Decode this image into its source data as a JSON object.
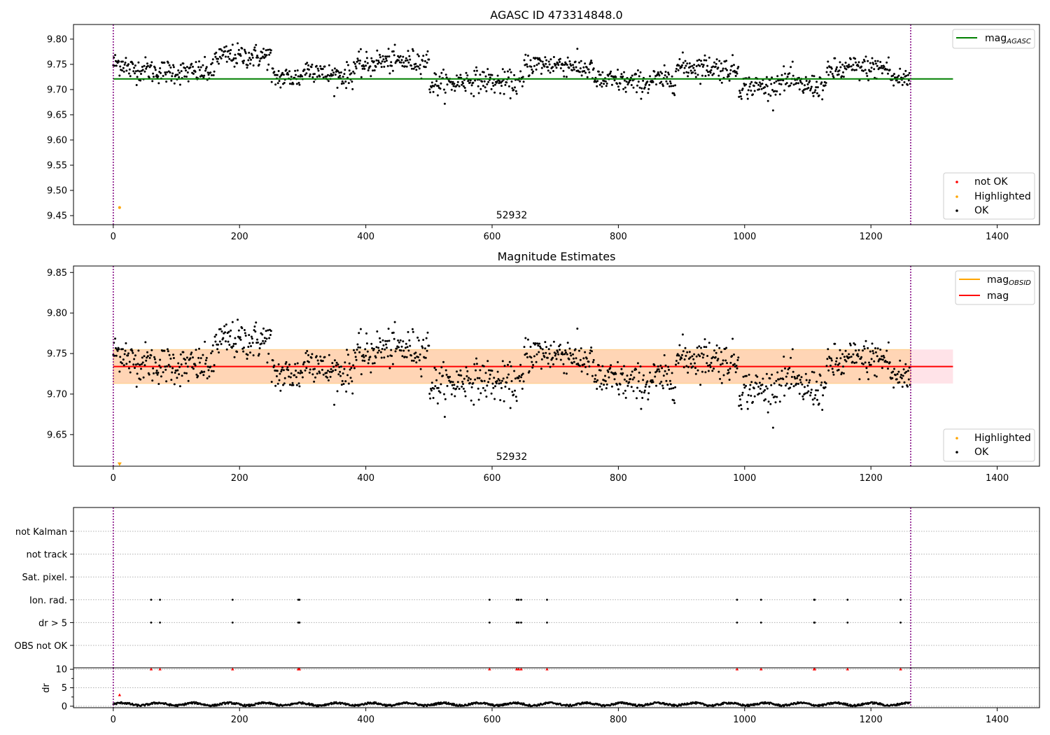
{
  "chart_data": [
    {
      "type": "scatter",
      "title": "AGASC ID 473314848.0",
      "xlim": [
        -63,
        1467
      ],
      "ylim": [
        9.432,
        9.829
      ],
      "x_ticks": [
        "0",
        "200",
        "400",
        "600",
        "800",
        "1000",
        "1200",
        "1400"
      ],
      "y_ticks": [
        "9.45",
        "9.50",
        "9.55",
        "9.60",
        "9.65",
        "9.70",
        "9.75",
        "9.80"
      ],
      "obsid_label": "52932",
      "obs_window": [
        0,
        1263
      ],
      "reference_line": {
        "name": "mag_AGASC",
        "y": 9.721,
        "x_range": [
          0,
          1330
        ],
        "color": "#008000"
      },
      "highlighted_points": [
        {
          "x": 10,
          "y": 9.466
        }
      ],
      "ok_series": {
        "name": "OK",
        "n": 1263,
        "x_range": [
          0,
          1263
        ],
        "segments": [
          {
            "x_end": 20,
            "mean": 9.752
          },
          {
            "x_end": 60,
            "mean": 9.74
          },
          {
            "x_end": 100,
            "mean": 9.736
          },
          {
            "x_end": 130,
            "mean": 9.734
          },
          {
            "x_end": 160,
            "mean": 9.735
          },
          {
            "x_end": 250,
            "mean": 9.766
          },
          {
            "x_end": 300,
            "mean": 9.724
          },
          {
            "x_end": 330,
            "mean": 9.741
          },
          {
            "x_end": 380,
            "mean": 9.728
          },
          {
            "x_end": 410,
            "mean": 9.748
          },
          {
            "x_end": 500,
            "mean": 9.756
          },
          {
            "x_end": 545,
            "mean": 9.712
          },
          {
            "x_end": 600,
            "mean": 9.718
          },
          {
            "x_end": 650,
            "mean": 9.713
          },
          {
            "x_end": 730,
            "mean": 9.75
          },
          {
            "x_end": 760,
            "mean": 9.742
          },
          {
            "x_end": 810,
            "mean": 9.717
          },
          {
            "x_end": 850,
            "mean": 9.713
          },
          {
            "x_end": 890,
            "mean": 9.719
          },
          {
            "x_end": 960,
            "mean": 9.745
          },
          {
            "x_end": 990,
            "mean": 9.74
          },
          {
            "x_end": 1050,
            "mean": 9.706
          },
          {
            "x_end": 1080,
            "mean": 9.718
          },
          {
            "x_end": 1130,
            "mean": 9.707
          },
          {
            "x_end": 1160,
            "mean": 9.738
          },
          {
            "x_end": 1230,
            "mean": 9.743
          },
          {
            "x_end": 1263,
            "mean": 9.721
          }
        ],
        "spread": 0.026
      },
      "legends": [
        {
          "position": "upper-right",
          "entries": [
            {
              "label": "mag",
              "sub": "AGASC",
              "marker": "line",
              "color": "#008000"
            }
          ]
        },
        {
          "position": "lower-right",
          "entries": [
            {
              "label": "not OK",
              "marker": "dot",
              "color": "#ff0000"
            },
            {
              "label": "Highlighted",
              "marker": "dot",
              "color": "#ffa500"
            },
            {
              "label": "OK",
              "marker": "dot",
              "color": "#000000"
            }
          ]
        }
      ]
    },
    {
      "type": "scatter",
      "title": "Magnitude Estimates",
      "xlim": [
        -63,
        1467
      ],
      "ylim": [
        9.611,
        9.858
      ],
      "x_ticks": [
        "0",
        "200",
        "400",
        "600",
        "800",
        "1000",
        "1200",
        "1400"
      ],
      "y_ticks": [
        "9.65",
        "9.70",
        "9.75",
        "9.80",
        "9.85"
      ],
      "obsid_label": "52932",
      "obs_window": [
        0,
        1263
      ],
      "mag_line": {
        "name": "mag",
        "y": 9.734,
        "x_range": [
          0,
          1330
        ],
        "color": "#ff0000"
      },
      "mag_band": {
        "y_range": [
          9.713,
          9.755
        ],
        "x_range": [
          0,
          1330
        ],
        "color": "#ffc0cb"
      },
      "mag_obsid_band": {
        "name": "mag_OBSID",
        "y_range": [
          9.713,
          9.755
        ],
        "x_range": [
          0,
          1263
        ],
        "color": "#ffa500"
      },
      "highlighted_points": [
        {
          "x": 10,
          "y": 9.613
        }
      ],
      "ok_series": "same as panel 1",
      "legends": [
        {
          "position": "upper-right",
          "entries": [
            {
              "label": "mag",
              "sub": "OBSID",
              "marker": "line",
              "color": "#ffa500"
            },
            {
              "label": "mag",
              "marker": "line",
              "color": "#ff0000"
            }
          ]
        },
        {
          "position": "lower-right",
          "entries": [
            {
              "label": "Highlighted",
              "marker": "dot",
              "color": "#ffa500"
            },
            {
              "label": "OK",
              "marker": "dot",
              "color": "#000000"
            }
          ]
        }
      ]
    },
    {
      "type": "scatter",
      "title": "",
      "xlim": [
        -63,
        1467
      ],
      "categories": [
        "not Kalman",
        "not track",
        "Sat. pixel.",
        "Ion. rad.",
        "dr > 5",
        "OBS not OK"
      ],
      "flags": {
        "Ion. rad.": [
          60,
          74,
          189,
          293,
          295,
          596,
          639,
          642,
          646,
          687,
          988,
          1026,
          1110,
          1111,
          1163,
          1247
        ],
        "dr > 5": [
          60,
          74,
          189,
          293,
          295,
          596,
          639,
          642,
          646,
          687,
          988,
          1026,
          1110,
          1111,
          1163,
          1247
        ]
      }
    },
    {
      "type": "scatter",
      "title": "",
      "ylabel": "dr",
      "xlim": [
        -63,
        1467
      ],
      "ylim": [
        -0.4,
        10.4
      ],
      "x_ticks": [
        "0",
        "200",
        "400",
        "600",
        "800",
        "1000",
        "1200",
        "1400"
      ],
      "y_ticks": [
        "0",
        "5",
        "10"
      ],
      "red_points": [
        {
          "x": 10,
          "y": 3
        },
        {
          "x": 60,
          "y": 10
        },
        {
          "x": 74,
          "y": 10
        },
        {
          "x": 189,
          "y": 10
        },
        {
          "x": 293,
          "y": 10
        },
        {
          "x": 295,
          "y": 10
        },
        {
          "x": 596,
          "y": 10
        },
        {
          "x": 639,
          "y": 10
        },
        {
          "x": 642,
          "y": 10
        },
        {
          "x": 646,
          "y": 10
        },
        {
          "x": 687,
          "y": 10
        },
        {
          "x": 988,
          "y": 10
        },
        {
          "x": 1026,
          "y": 10
        },
        {
          "x": 1110,
          "y": 10
        },
        {
          "x": 1111,
          "y": 10
        },
        {
          "x": 1163,
          "y": 10
        },
        {
          "x": 1247,
          "y": 10
        }
      ],
      "ok_series": {
        "name": "dr",
        "n": 1263,
        "x_range": [
          0,
          1263
        ],
        "range": [
          0,
          1.4
        ]
      }
    }
  ]
}
